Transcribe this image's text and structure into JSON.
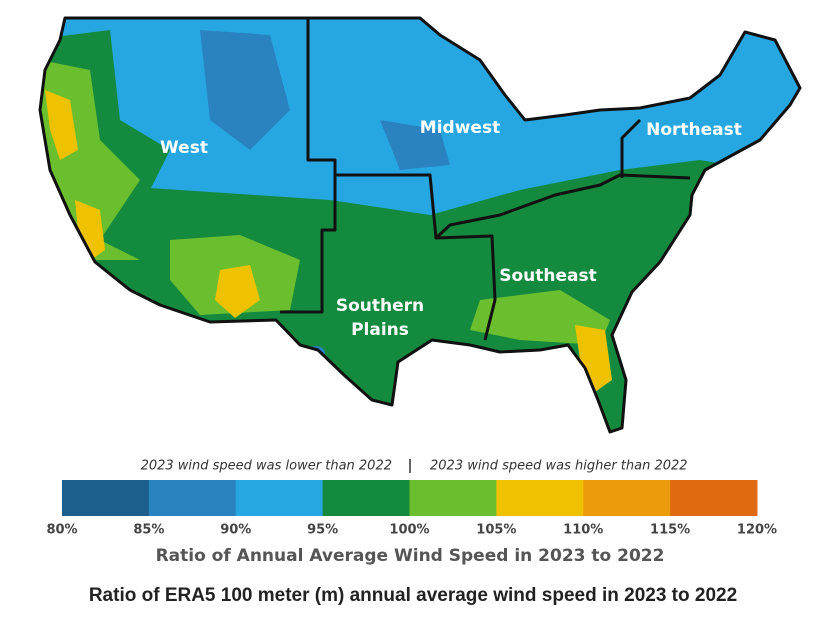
{
  "map": {
    "regions": [
      {
        "lines": [
          "West"
        ]
      },
      {
        "lines": [
          "Midwest"
        ]
      },
      {
        "lines": [
          "Northeast"
        ]
      },
      {
        "lines": [
          "Southern",
          "Plains"
        ]
      },
      {
        "lines": [
          "Southeast"
        ]
      }
    ]
  },
  "legend": {
    "lower_note": "2023 wind speed was lower than 2022",
    "higher_note": "2023 wind speed was higher than 2022",
    "colors": [
      "#1d5f8c",
      "#2b82c0",
      "#27a7e2",
      "#148a3f",
      "#6bbf2e",
      "#efc200",
      "#eb9b0b",
      "#df6a12"
    ],
    "tick_labels": [
      "80%",
      "85%",
      "90%",
      "95%",
      "100%",
      "105%",
      "110%",
      "115%",
      "120%"
    ],
    "title": "Ratio of Annual Average Wind Speed in 2023 to 2022"
  },
  "caption": "Ratio of ERA5 100 meter (m) annual average wind speed in 2023 to 2022"
}
